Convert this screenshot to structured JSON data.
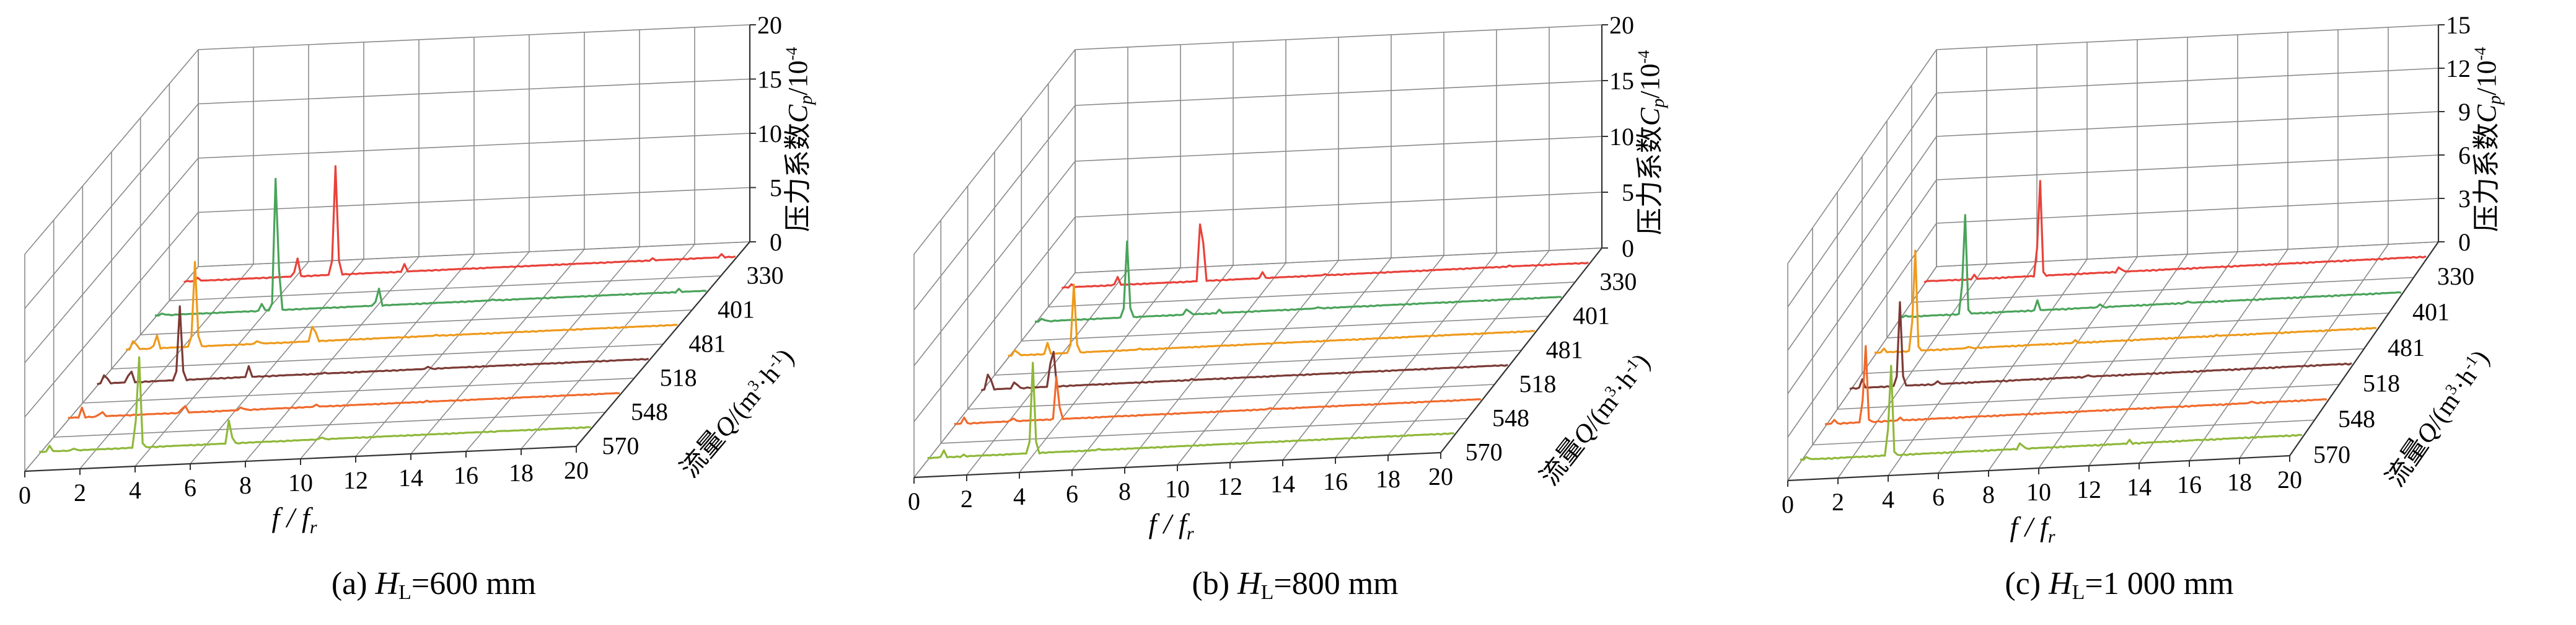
{
  "figure": {
    "captions": [
      {
        "prefix": "(a) ",
        "var": "H",
        "sub": "L",
        "suffix": "=600 mm"
      },
      {
        "prefix": "(b) ",
        "var": "H",
        "sub": "L",
        "suffix": "=800 mm"
      },
      {
        "prefix": "(c) ",
        "var": "H",
        "sub": "L",
        "suffix": "=1 000 mm"
      }
    ],
    "x_label": "f / f r",
    "z_label": "压力系数 Cp /10⁻⁴",
    "y_label": "流量 Q/(m³·h⁻¹)"
  },
  "chart_data": [
    {
      "type": "line",
      "title": "(a) HL=600 mm",
      "xlabel": "f/fr",
      "ylabel": "流量Q/(m3·h-1)",
      "zlabel": "压力系数Cp/10-4",
      "xlim": [
        0,
        20
      ],
      "zlim": [
        0,
        20
      ],
      "x_ticks": [
        "0",
        "2",
        "4",
        "6",
        "8",
        "10",
        "12",
        "14",
        "16",
        "18",
        "20"
      ],
      "z_ticks": [
        "0",
        "5",
        "10",
        "15",
        "20"
      ],
      "y_ticks": [
        "330",
        "401",
        "481",
        "518",
        "548",
        "570"
      ],
      "grid": true,
      "series": [
        {
          "name": "330",
          "color": "#e8423a",
          "peaks": [
            [
              0.5,
              0.5
            ],
            [
              4.1,
              2.0
            ],
            [
              5.5,
              10.2
            ],
            [
              8.0,
              0.9
            ],
            [
              17,
              0.4
            ],
            [
              19.5,
              0.5
            ]
          ]
        },
        {
          "name": "401",
          "color": "#4aa35a",
          "peaks": [
            [
              0.3,
              0.5
            ],
            [
              3.9,
              0.9
            ],
            [
              4.4,
              13.3
            ],
            [
              8.1,
              1.9
            ],
            [
              12.3,
              0.4
            ],
            [
              19.0,
              0.5
            ]
          ]
        },
        {
          "name": "481",
          "color": "#ee9a1c",
          "peaks": [
            [
              0.3,
              1.3
            ],
            [
              1.1,
              1.5
            ],
            [
              2.5,
              8.0
            ],
            [
              4.8,
              0.6
            ],
            [
              6.8,
              2.1
            ],
            [
              11.2,
              0.4
            ]
          ]
        },
        {
          "name": "518",
          "color": "#7b3a35",
          "peaks": [
            [
              0.3,
              1.3
            ],
            [
              1.2,
              1.6
            ],
            [
              3.0,
              7.0
            ],
            [
              5.5,
              1.2
            ],
            [
              8.2,
              0.4
            ],
            [
              12.0,
              0.4
            ]
          ]
        },
        {
          "name": "548",
          "color": "#f06a2c",
          "peaks": [
            [
              0.5,
              1.1
            ],
            [
              1.2,
              0.8
            ],
            [
              4.2,
              1.1
            ],
            [
              6.3,
              0.6
            ],
            [
              9.0,
              0.4
            ],
            [
              13.0,
              0.3
            ]
          ]
        },
        {
          "name": "570",
          "color": "#8fb83a",
          "peaks": [
            [
              0.4,
              0.8
            ],
            [
              1.3,
              0.5
            ],
            [
              3.6,
              9.2
            ],
            [
              6.9,
              2.5
            ],
            [
              10.2,
              0.5
            ],
            [
              16.8,
              0.3
            ]
          ]
        }
      ]
    },
    {
      "type": "line",
      "title": "(b) HL=800 mm",
      "xlabel": "f/fr",
      "ylabel": "流量Q/(m3·h-1)",
      "zlabel": "压力系数Cp/10-4",
      "xlim": [
        0,
        20
      ],
      "zlim": [
        0,
        20
      ],
      "x_ticks": [
        "0",
        "2",
        "4",
        "6",
        "8",
        "10",
        "12",
        "14",
        "16",
        "18",
        "20"
      ],
      "z_ticks": [
        "0",
        "5",
        "10",
        "15",
        "20"
      ],
      "y_ticks": [
        "330",
        "401",
        "481",
        "518",
        "548",
        "570"
      ],
      "grid": true,
      "series": [
        {
          "name": "330",
          "color": "#e8423a",
          "peaks": [
            [
              0.4,
              0.5
            ],
            [
              2.1,
              1.0
            ],
            [
              5.3,
              7.2
            ],
            [
              7.6,
              0.8
            ],
            [
              10.0,
              0.3
            ],
            [
              17.0,
              0.3
            ]
          ]
        },
        {
          "name": "401",
          "color": "#4aa35a",
          "peaks": [
            [
              0.3,
              0.6
            ],
            [
              3.5,
              7.0
            ],
            [
              5.8,
              0.9
            ],
            [
              7.0,
              0.5
            ],
            [
              10.8,
              0.4
            ]
          ]
        },
        {
          "name": "481",
          "color": "#ee9a1c",
          "peaks": [
            [
              0.3,
              0.9
            ],
            [
              1.5,
              1.2
            ],
            [
              2.5,
              6.3
            ],
            [
              5.0,
              0.3
            ],
            [
              10.2,
              0.3
            ]
          ]
        },
        {
          "name": "518",
          "color": "#7b3a35",
          "peaks": [
            [
              0.3,
              2.1
            ],
            [
              1.3,
              1.0
            ],
            [
              2.7,
              4.5
            ],
            [
              4.8,
              0.3
            ],
            [
              8.0,
              0.3
            ]
          ]
        },
        {
          "name": "548",
          "color": "#f06a2c",
          "peaks": [
            [
              0.4,
              0.8
            ],
            [
              2.2,
              0.6
            ],
            [
              3.9,
              4.3
            ],
            [
              6.2,
              0.3
            ],
            [
              12.0,
              0.3
            ]
          ]
        },
        {
          "name": "570",
          "color": "#8fb83a",
          "peaks": [
            [
              0.6,
              0.9
            ],
            [
              1.4,
              0.4
            ],
            [
              4.0,
              8.3
            ],
            [
              6.5,
              0.3
            ],
            [
              11.0,
              0.2
            ]
          ]
        }
      ]
    },
    {
      "type": "line",
      "title": "(c) HL=1 000 mm",
      "xlabel": "f/fr",
      "ylabel": "流量Q/(m3·h-1)",
      "zlabel": "压力系数Cp/10-4",
      "xlim": [
        0,
        20
      ],
      "zlim": [
        0,
        15
      ],
      "x_ticks": [
        "0",
        "2",
        "4",
        "6",
        "8",
        "10",
        "12",
        "14",
        "16",
        "18",
        "20"
      ],
      "z_ticks": [
        "0",
        "3",
        "6",
        "9",
        "12",
        "15"
      ],
      "y_ticks": [
        "330",
        "401",
        "481",
        "518",
        "548",
        "570"
      ],
      "grid": true,
      "series": [
        {
          "name": "330",
          "color": "#e8423a",
          "peaks": [
            [
              0.3,
              0.3
            ],
            [
              2.0,
              0.5
            ],
            [
              4.6,
              7.3
            ],
            [
              7.8,
              0.7
            ],
            [
              14.5,
              0.2
            ],
            [
              19.0,
              0.2
            ]
          ]
        },
        {
          "name": "401",
          "color": "#4aa35a",
          "peaks": [
            [
              0.3,
              0.4
            ],
            [
              2.6,
              7.6
            ],
            [
              5.5,
              0.9
            ],
            [
              8.0,
              0.4
            ],
            [
              11.5,
              0.3
            ]
          ]
        },
        {
          "name": "481",
          "color": "#ee9a1c",
          "peaks": [
            [
              0.4,
              0.5
            ],
            [
              1.6,
              7.7
            ],
            [
              3.7,
              0.4
            ],
            [
              8.0,
              0.4
            ],
            [
              13.6,
              0.3
            ]
          ]
        },
        {
          "name": "518",
          "color": "#7b3a35",
          "peaks": [
            [
              0.5,
              0.8
            ],
            [
              2.0,
              6.0
            ],
            [
              3.5,
              0.4
            ],
            [
              9.5,
              0.3
            ]
          ]
        },
        {
          "name": "548",
          "color": "#f06a2c",
          "peaks": [
            [
              0.4,
              0.5
            ],
            [
              1.6,
              5.9
            ],
            [
              3.0,
              0.4
            ],
            [
              9.2,
              0.3
            ],
            [
              17.0,
              0.3
            ]
          ]
        },
        {
          "name": "570",
          "color": "#8fb83a",
          "peaks": [
            [
              0.3,
              0.5
            ],
            [
              3.6,
              6.9
            ],
            [
              8.8,
              0.8
            ],
            [
              13.1,
              0.5
            ],
            [
              15.8,
              0.3
            ]
          ]
        }
      ]
    }
  ]
}
